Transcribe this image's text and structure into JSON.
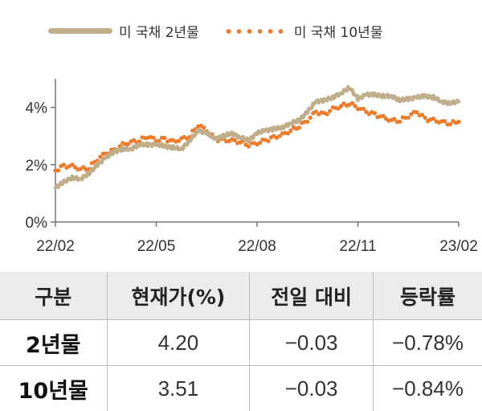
{
  "legend": [
    {
      "label": "미 국채 2년물",
      "style": "solid",
      "color": "#c0ae8a"
    },
    {
      "label": "미 국채 10년물",
      "style": "dotted",
      "color": "#ee7a2a"
    }
  ],
  "chart_data": {
    "type": "line",
    "title": "",
    "xlabel": "",
    "ylabel": "",
    "x_ticks": [
      "22/02",
      "22/05",
      "22/08",
      "22/11",
      "23/02"
    ],
    "y_ticks": [
      "0%",
      "2%",
      "4%"
    ],
    "ylim": [
      0,
      5
    ],
    "grid": false,
    "legend_position": "top",
    "series": [
      {
        "name": "미 국채 2년물",
        "color": "#c0ae8a",
        "style": "solid",
        "x": [
          0,
          0.25,
          0.5,
          0.75,
          1,
          1.25,
          1.5,
          1.75,
          2,
          2.25,
          2.5,
          2.75,
          3,
          3.25,
          3.5,
          3.75,
          4,
          4.25,
          4.5,
          4.75,
          5,
          5.25,
          5.5,
          5.75,
          6,
          6.25,
          6.5,
          6.75,
          7,
          7.25,
          7.5,
          7.75,
          8,
          8.25,
          8.5,
          8.75,
          9,
          9.25,
          9.5,
          9.75,
          10,
          10.25,
          10.5,
          10.75,
          11,
          11.25,
          11.5,
          11.75,
          12
        ],
        "values": [
          1.2,
          1.4,
          1.55,
          1.5,
          1.7,
          2.0,
          2.25,
          2.45,
          2.55,
          2.55,
          2.7,
          2.7,
          2.7,
          2.65,
          2.6,
          2.55,
          2.85,
          3.2,
          3.1,
          2.9,
          3.0,
          3.1,
          2.95,
          2.85,
          3.1,
          3.2,
          3.25,
          3.3,
          3.45,
          3.55,
          3.85,
          4.2,
          4.25,
          4.35,
          4.5,
          4.7,
          4.3,
          4.45,
          4.45,
          4.4,
          4.4,
          4.25,
          4.3,
          4.35,
          4.4,
          4.35,
          4.2,
          4.15,
          4.2
        ]
      },
      {
        "name": "미 국채 10년물",
        "color": "#ee7a2a",
        "style": "dotted",
        "x": [
          0,
          0.25,
          0.5,
          0.75,
          1,
          1.25,
          1.5,
          1.75,
          2,
          2.25,
          2.5,
          2.75,
          3,
          3.25,
          3.5,
          3.75,
          4,
          4.25,
          4.5,
          4.75,
          5,
          5.25,
          5.5,
          5.75,
          6,
          6.25,
          6.5,
          6.75,
          7,
          7.25,
          7.5,
          7.75,
          8,
          8.25,
          8.5,
          8.75,
          9,
          9.25,
          9.5,
          9.75,
          10,
          10.25,
          10.5,
          10.75,
          11,
          11.25,
          11.5,
          11.75,
          12
        ],
        "values": [
          1.8,
          1.95,
          1.95,
          1.85,
          1.9,
          2.2,
          2.4,
          2.5,
          2.7,
          2.8,
          2.85,
          3.0,
          2.85,
          2.9,
          2.8,
          2.9,
          3.0,
          3.4,
          3.2,
          2.9,
          2.85,
          2.85,
          2.8,
          2.7,
          2.75,
          2.85,
          2.95,
          3.05,
          3.2,
          3.35,
          3.55,
          3.85,
          3.75,
          3.95,
          4.05,
          4.15,
          4.0,
          3.85,
          3.75,
          3.65,
          3.55,
          3.55,
          3.7,
          3.85,
          3.6,
          3.55,
          3.5,
          3.45,
          3.5
        ]
      }
    ]
  },
  "table": {
    "headers": [
      "구분",
      "현재가(%)",
      "전일 대비",
      "등락률"
    ],
    "rows": [
      [
        "2년물",
        "4.20",
        "−0.03",
        "−0.78%"
      ],
      [
        "10년물",
        "3.51",
        "−0.03",
        "−0.84%"
      ]
    ]
  }
}
